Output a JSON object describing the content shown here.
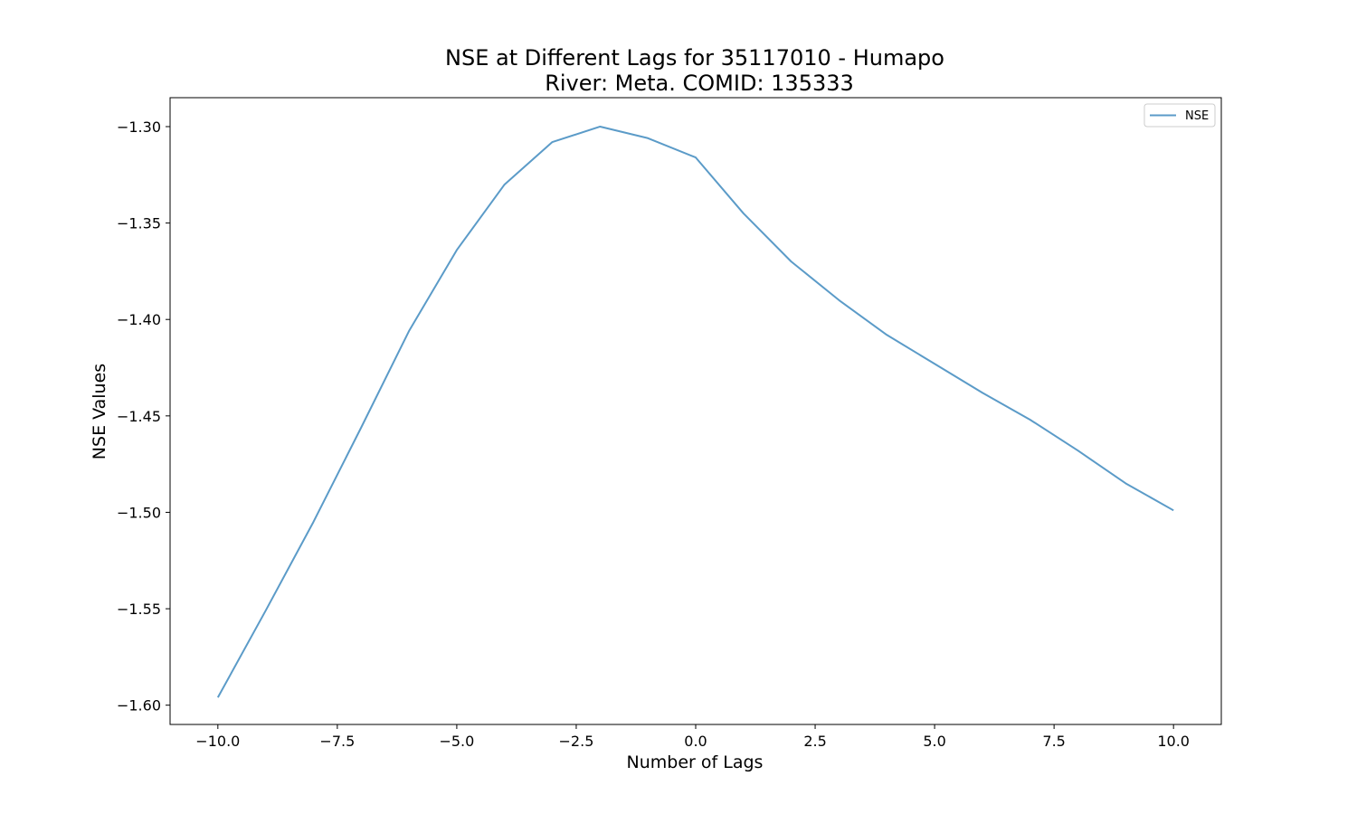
{
  "chart_data": {
    "type": "line",
    "title_lines": [
      "NSE at Different Lags for 35117010 - Humapo",
      "River: Meta. COMID: 135333"
    ],
    "xlabel": "Number of Lags",
    "ylabel": "NSE Values",
    "xlim": [
      -11,
      11
    ],
    "ylim": [
      -1.61,
      -1.285
    ],
    "xticks": [
      -10.0,
      -7.5,
      -5.0,
      -2.5,
      0.0,
      2.5,
      5.0,
      7.5,
      10.0
    ],
    "xtick_labels": [
      "−10.0",
      "−7.5",
      "−5.0",
      "−2.5",
      "0.0",
      "2.5",
      "5.0",
      "7.5",
      "10.0"
    ],
    "yticks": [
      -1.3,
      -1.35,
      -1.4,
      -1.45,
      -1.5,
      -1.55,
      -1.6
    ],
    "ytick_labels": [
      "−1.30",
      "−1.35",
      "−1.40",
      "−1.45",
      "−1.50",
      "−1.55",
      "−1.60"
    ],
    "grid": false,
    "legend_position": "top-right",
    "series": [
      {
        "name": "NSE",
        "color": "#5b9bc8",
        "x": [
          -10,
          -9,
          -8,
          -7,
          -6,
          -5,
          -4,
          -3,
          -2,
          -1,
          0,
          1,
          2,
          3,
          4,
          5,
          6,
          7,
          8,
          9,
          10
        ],
        "y": [
          -1.596,
          -1.551,
          -1.505,
          -1.456,
          -1.406,
          -1.364,
          -1.33,
          -1.308,
          -1.3,
          -1.306,
          -1.316,
          -1.345,
          -1.37,
          -1.39,
          -1.408,
          -1.423,
          -1.438,
          -1.452,
          -1.468,
          -1.485,
          -1.499
        ]
      }
    ]
  }
}
